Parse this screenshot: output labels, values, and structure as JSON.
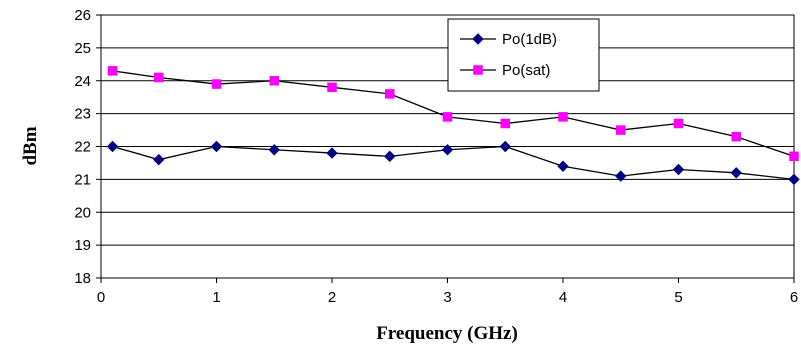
{
  "chart_data": {
    "type": "line",
    "xlabel": "Frequency (GHz)",
    "ylabel": "dBm",
    "xlim": [
      0,
      6
    ],
    "ylim": [
      18,
      26
    ],
    "xticks": [
      0,
      1,
      2,
      3,
      4,
      5,
      6
    ],
    "yticks": [
      18,
      19,
      20,
      21,
      22,
      23,
      24,
      25,
      26
    ],
    "grid": "horizontal",
    "legend_position": "top-right",
    "series": [
      {
        "name": "Po(1dB)",
        "color": "#000080",
        "marker": "diamond",
        "x": [
          0.1,
          0.5,
          1.0,
          1.5,
          2.0,
          2.5,
          3.0,
          3.5,
          4.0,
          4.5,
          5.0,
          5.5,
          6.0
        ],
        "y": [
          22.0,
          21.6,
          22.0,
          21.9,
          21.8,
          21.7,
          21.9,
          22.0,
          21.4,
          21.1,
          21.3,
          21.2,
          21.0
        ]
      },
      {
        "name": "Po(sat)",
        "color": "#ff00ff",
        "marker": "square",
        "x": [
          0.1,
          0.5,
          1.0,
          1.5,
          2.0,
          2.5,
          3.0,
          3.5,
          4.0,
          4.5,
          5.0,
          5.5,
          6.0
        ],
        "y": [
          24.3,
          24.1,
          23.9,
          24.0,
          23.8,
          23.6,
          22.9,
          22.7,
          22.9,
          22.5,
          22.7,
          22.3,
          21.7
        ]
      }
    ]
  }
}
